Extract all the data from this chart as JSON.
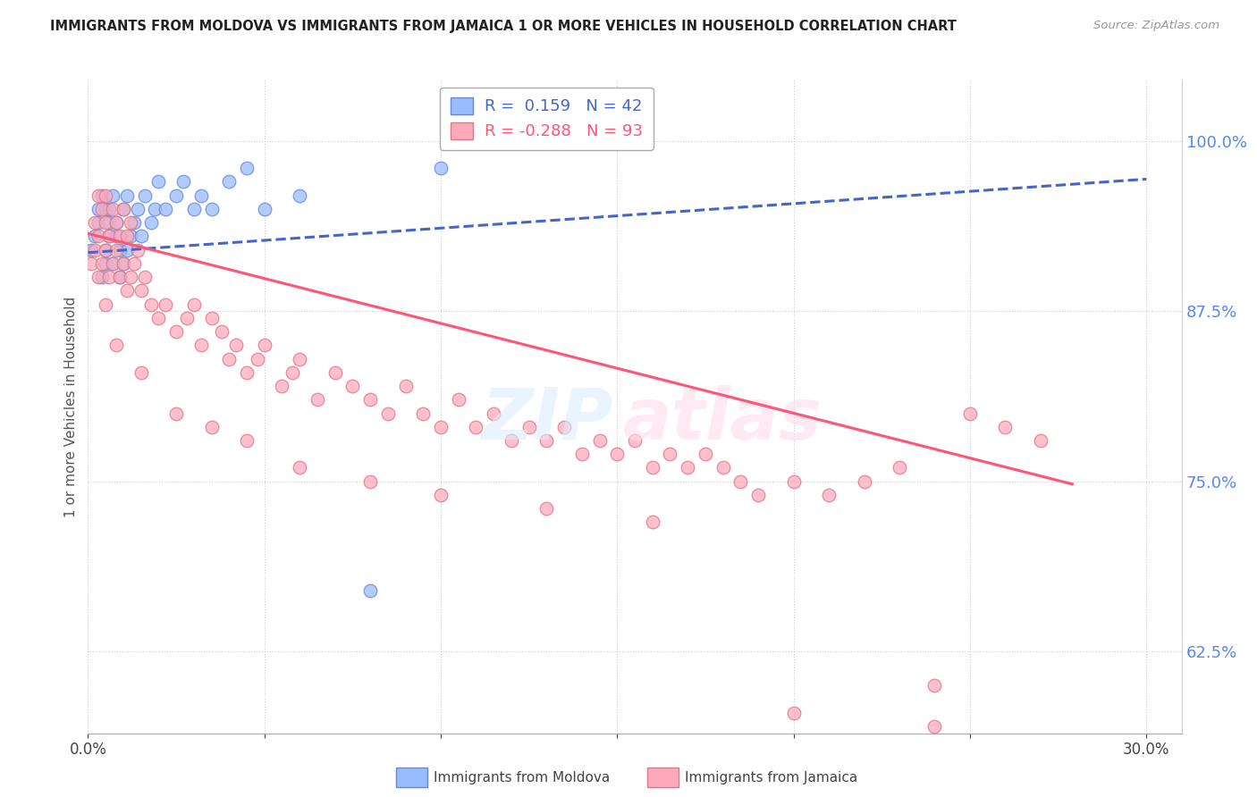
{
  "title": "IMMIGRANTS FROM MOLDOVA VS IMMIGRANTS FROM JAMAICA 1 OR MORE VEHICLES IN HOUSEHOLD CORRELATION CHART",
  "source": "Source: ZipAtlas.com",
  "ylabel": "1 or more Vehicles in Household",
  "yticks": [
    0.625,
    0.75,
    0.875,
    1.0
  ],
  "ytick_labels": [
    "62.5%",
    "75.0%",
    "87.5%",
    "100.0%"
  ],
  "xlim": [
    0.0,
    0.31
  ],
  "ylim": [
    0.565,
    1.045
  ],
  "moldova_color": "#99bbff",
  "moldova_edge": "#6688dd",
  "jamaica_color": "#ffaabb",
  "jamaica_edge": "#dd7788",
  "moldova_R": 0.159,
  "moldova_N": 42,
  "jamaica_R": -0.288,
  "jamaica_N": 93,
  "moldova_trend_x": [
    0.0,
    0.3
  ],
  "moldova_trend_y": [
    0.918,
    0.972
  ],
  "jamaica_trend_x": [
    0.0,
    0.279
  ],
  "jamaica_trend_y": [
    0.932,
    0.748
  ],
  "moldova_x": [
    0.001,
    0.002,
    0.003,
    0.003,
    0.004,
    0.004,
    0.005,
    0.005,
    0.005,
    0.006,
    0.006,
    0.006,
    0.007,
    0.007,
    0.008,
    0.008,
    0.009,
    0.009,
    0.01,
    0.01,
    0.011,
    0.011,
    0.012,
    0.013,
    0.014,
    0.015,
    0.016,
    0.018,
    0.019,
    0.02,
    0.022,
    0.025,
    0.027,
    0.03,
    0.032,
    0.035,
    0.04,
    0.045,
    0.05,
    0.06,
    0.08,
    0.1
  ],
  "moldova_y": [
    0.92,
    0.93,
    0.94,
    0.95,
    0.96,
    0.9,
    0.91,
    0.92,
    0.95,
    0.93,
    0.94,
    0.95,
    0.96,
    0.91,
    0.93,
    0.94,
    0.9,
    0.92,
    0.95,
    0.91,
    0.96,
    0.92,
    0.93,
    0.94,
    0.95,
    0.93,
    0.96,
    0.94,
    0.95,
    0.97,
    0.95,
    0.96,
    0.97,
    0.95,
    0.96,
    0.95,
    0.97,
    0.98,
    0.95,
    0.96,
    0.67,
    0.98
  ],
  "jamaica_x": [
    0.001,
    0.002,
    0.002,
    0.003,
    0.003,
    0.003,
    0.004,
    0.004,
    0.005,
    0.005,
    0.005,
    0.006,
    0.006,
    0.007,
    0.007,
    0.008,
    0.008,
    0.009,
    0.009,
    0.01,
    0.01,
    0.011,
    0.011,
    0.012,
    0.012,
    0.013,
    0.014,
    0.015,
    0.016,
    0.018,
    0.02,
    0.022,
    0.025,
    0.028,
    0.03,
    0.032,
    0.035,
    0.038,
    0.04,
    0.042,
    0.045,
    0.048,
    0.05,
    0.055,
    0.058,
    0.06,
    0.065,
    0.07,
    0.075,
    0.08,
    0.085,
    0.09,
    0.095,
    0.1,
    0.105,
    0.11,
    0.115,
    0.12,
    0.125,
    0.13,
    0.135,
    0.14,
    0.145,
    0.15,
    0.155,
    0.16,
    0.165,
    0.17,
    0.175,
    0.18,
    0.185,
    0.19,
    0.2,
    0.21,
    0.22,
    0.23,
    0.24,
    0.25,
    0.26,
    0.27,
    0.005,
    0.008,
    0.015,
    0.025,
    0.035,
    0.045,
    0.06,
    0.08,
    0.1,
    0.13,
    0.16,
    0.2,
    0.24
  ],
  "jamaica_y": [
    0.91,
    0.92,
    0.94,
    0.9,
    0.93,
    0.96,
    0.91,
    0.95,
    0.92,
    0.94,
    0.96,
    0.9,
    0.93,
    0.91,
    0.95,
    0.92,
    0.94,
    0.9,
    0.93,
    0.91,
    0.95,
    0.89,
    0.93,
    0.9,
    0.94,
    0.91,
    0.92,
    0.89,
    0.9,
    0.88,
    0.87,
    0.88,
    0.86,
    0.87,
    0.88,
    0.85,
    0.87,
    0.86,
    0.84,
    0.85,
    0.83,
    0.84,
    0.85,
    0.82,
    0.83,
    0.84,
    0.81,
    0.83,
    0.82,
    0.81,
    0.8,
    0.82,
    0.8,
    0.79,
    0.81,
    0.79,
    0.8,
    0.78,
    0.79,
    0.78,
    0.79,
    0.77,
    0.78,
    0.77,
    0.78,
    0.76,
    0.77,
    0.76,
    0.77,
    0.76,
    0.75,
    0.74,
    0.75,
    0.74,
    0.75,
    0.76,
    0.57,
    0.8,
    0.79,
    0.78,
    0.88,
    0.85,
    0.83,
    0.8,
    0.79,
    0.78,
    0.76,
    0.75,
    0.74,
    0.73,
    0.72,
    0.58,
    0.6
  ],
  "grid_color": "#cccccc",
  "trend_moldova_color": "#4466cc",
  "trend_jamaica_color": "#ff5577",
  "right_axis_color": "#5588ee",
  "watermark_zip_color": "#ddeeff",
  "watermark_atlas_color": "#ffddee"
}
